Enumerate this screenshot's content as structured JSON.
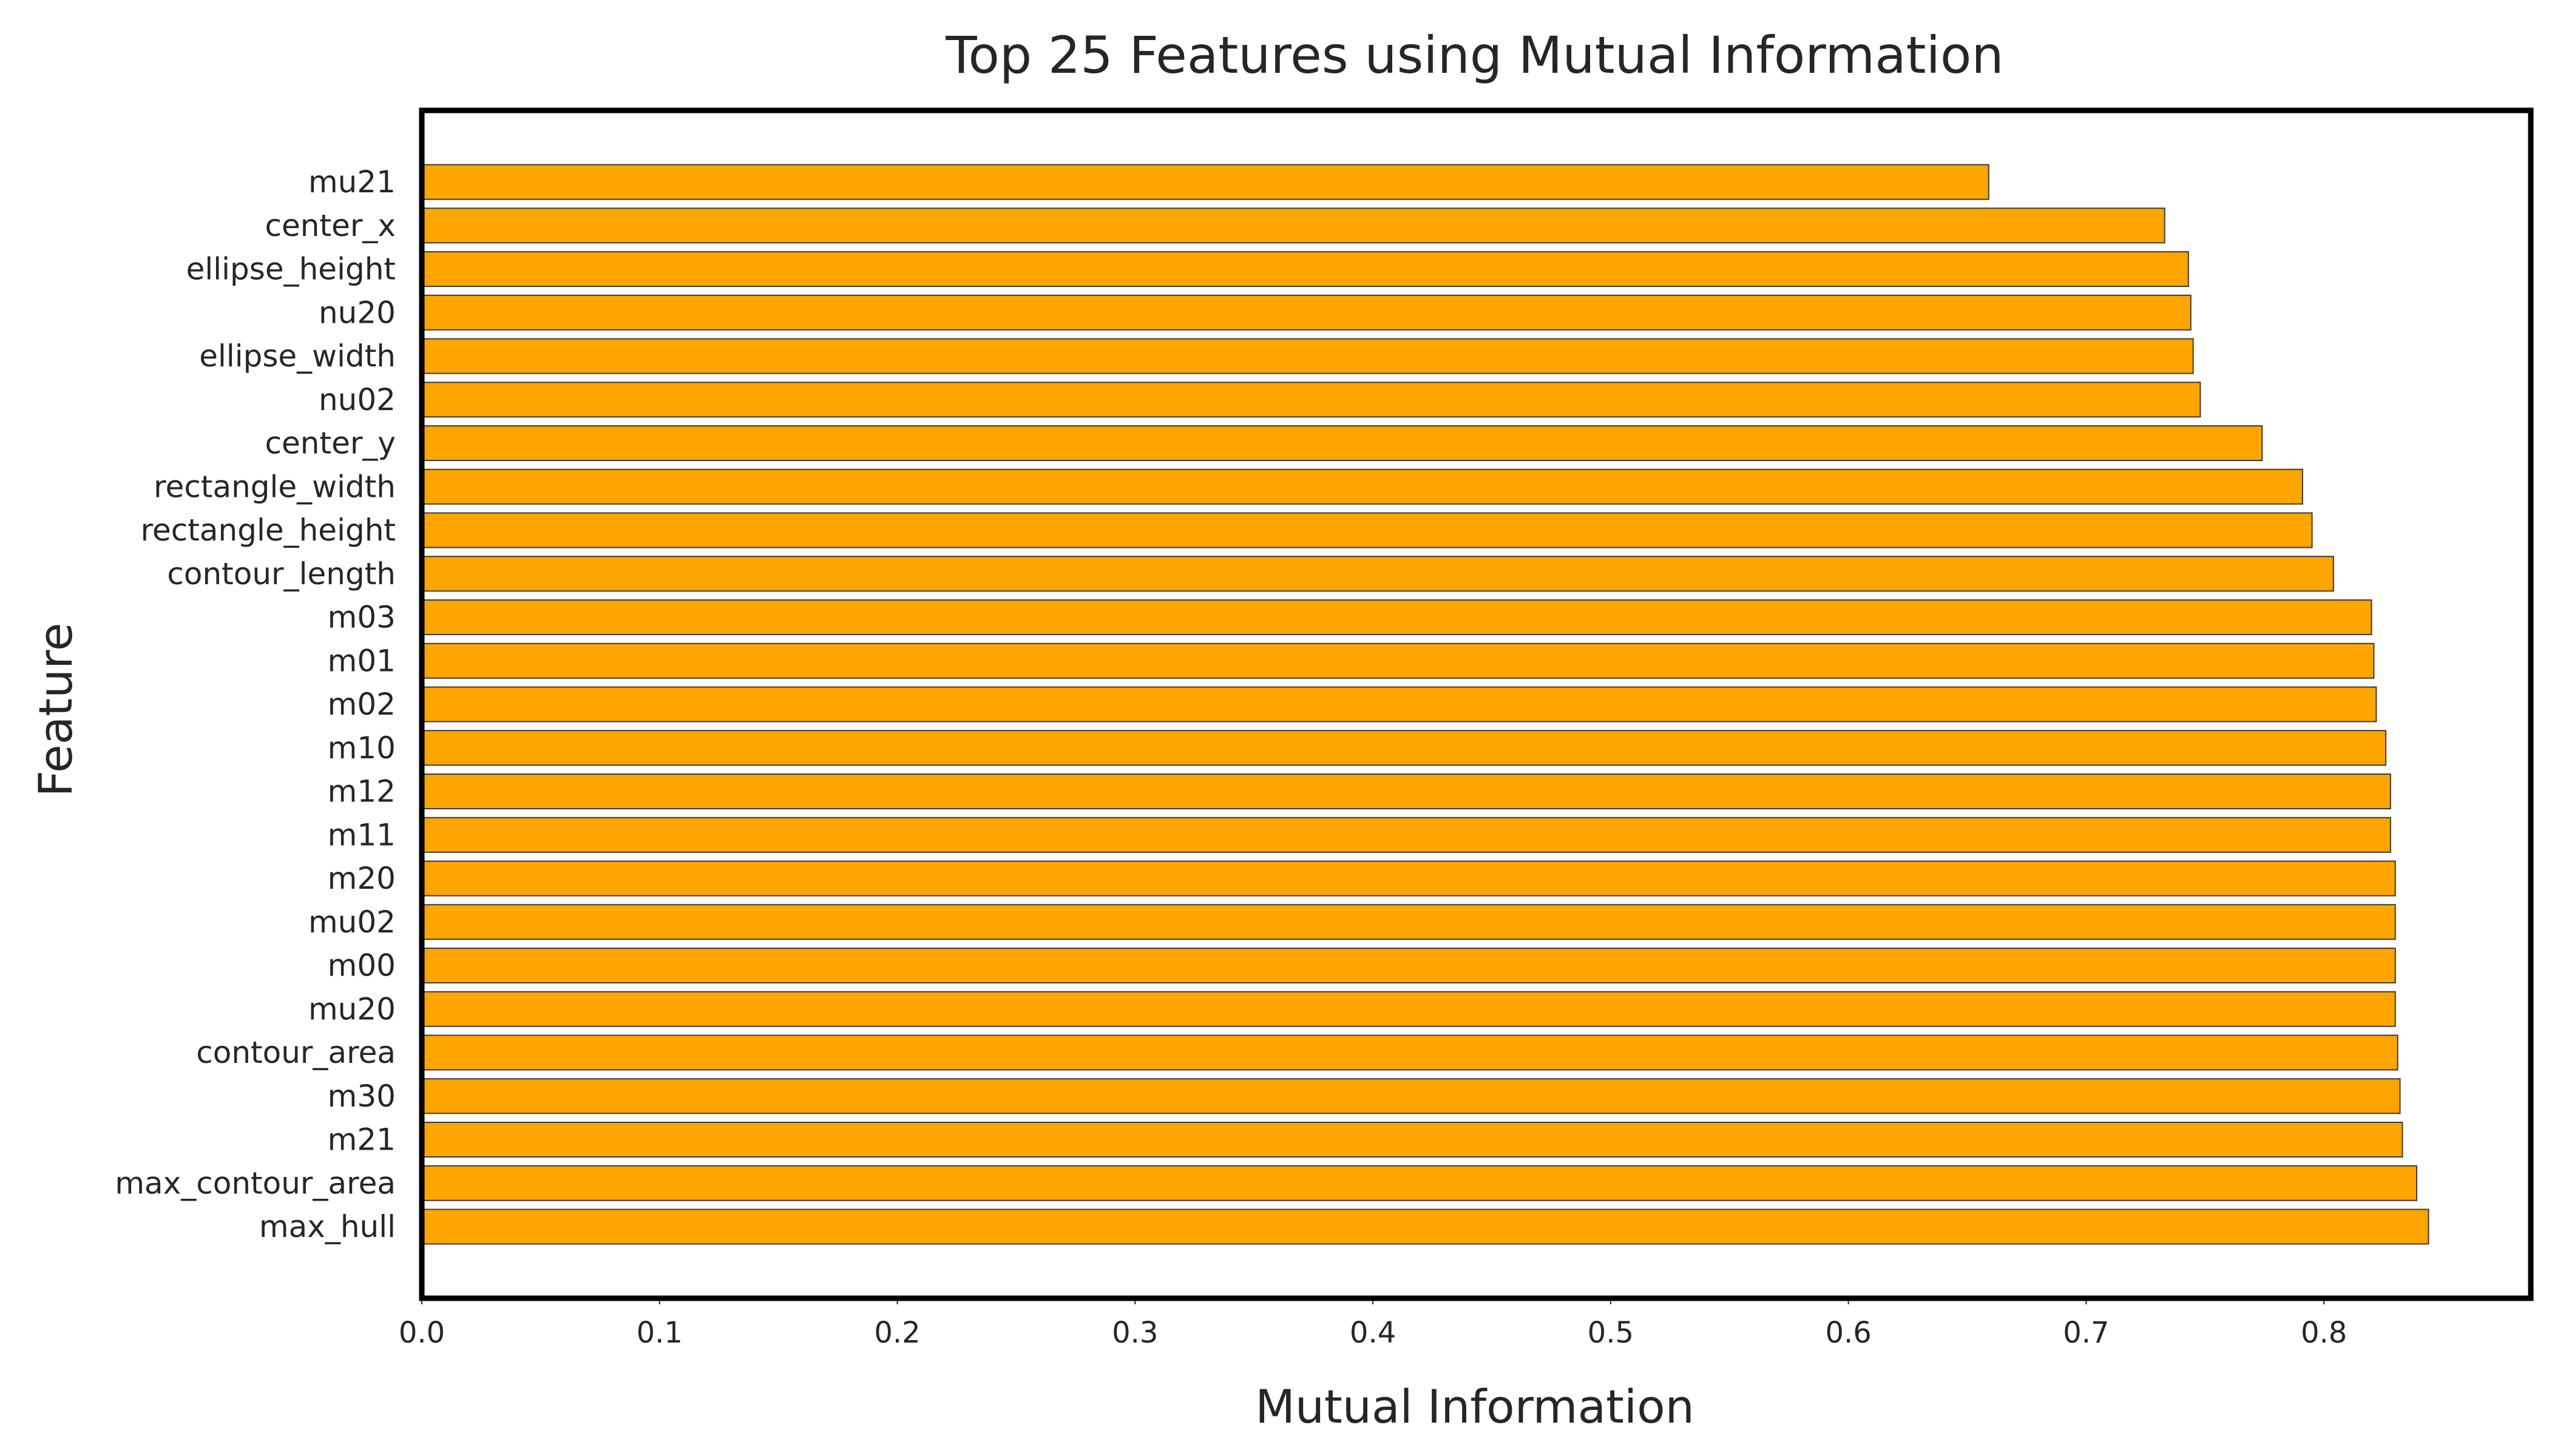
{
  "chart_data": {
    "type": "bar",
    "orientation": "horizontal",
    "title": "Top 25 Features using Mutual Information",
    "xlabel": "Mutual Information",
    "ylabel": "Feature",
    "xlim": [
      0,
      0.887
    ],
    "xticks": [
      "0.0",
      "0.1",
      "0.2",
      "0.3",
      "0.4",
      "0.5",
      "0.6",
      "0.7",
      "0.8"
    ],
    "grid": false,
    "bar_color": "#ffa500",
    "bar_edge_color": "#3a3a3a",
    "categories": [
      "mu21",
      "center_x",
      "ellipse_height",
      "nu20",
      "ellipse_width",
      "nu02",
      "center_y",
      "rectangle_width",
      "rectangle_height",
      "contour_length",
      "m03",
      "m01",
      "m02",
      "m10",
      "m12",
      "m11",
      "m20",
      "mu02",
      "m00",
      "mu20",
      "contour_area",
      "m30",
      "m21",
      "max_contour_area",
      "max_hull"
    ],
    "values": [
      0.659,
      0.733,
      0.743,
      0.744,
      0.745,
      0.748,
      0.774,
      0.791,
      0.795,
      0.804,
      0.82,
      0.821,
      0.822,
      0.826,
      0.828,
      0.828,
      0.83,
      0.83,
      0.83,
      0.83,
      0.831,
      0.832,
      0.833,
      0.839,
      0.844
    ]
  }
}
